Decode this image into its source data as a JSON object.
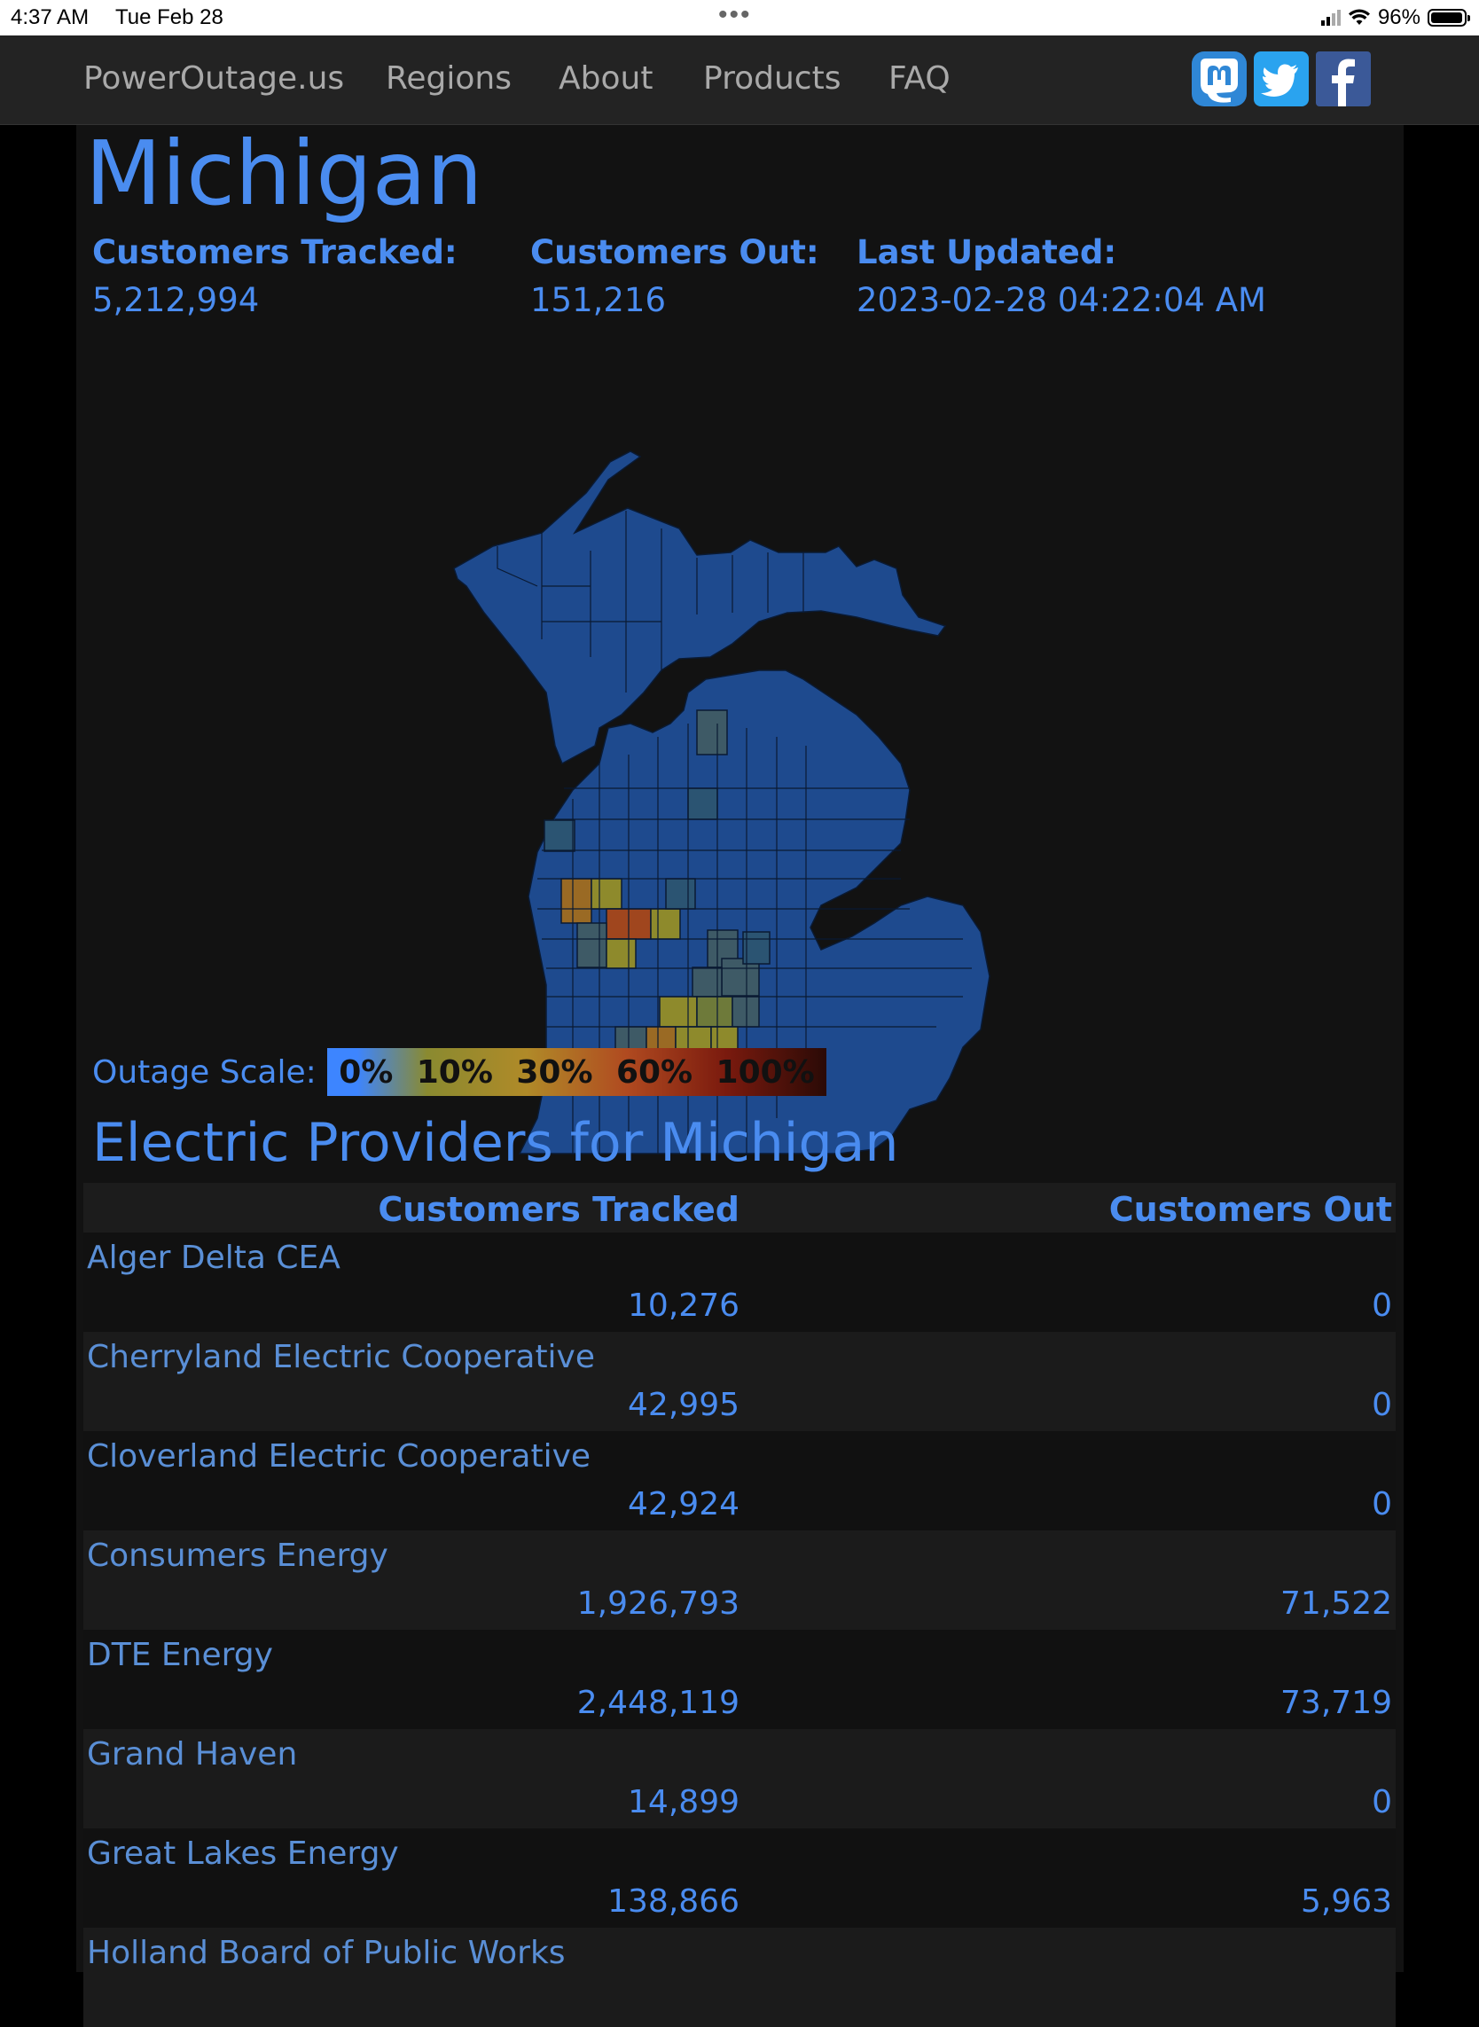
{
  "status_bar": {
    "time": "4:37 AM",
    "date": "Tue Feb 28",
    "battery": "96%",
    "battery_level": 0.96
  },
  "nav": {
    "items": [
      {
        "label": "PowerOutage.us"
      },
      {
        "label": "Regions"
      },
      {
        "label": "About"
      },
      {
        "label": "Products"
      },
      {
        "label": "FAQ"
      }
    ],
    "social": [
      {
        "name": "mastodon-icon",
        "color": "#3088d4"
      },
      {
        "name": "twitter-icon",
        "color": "#2aa3ef"
      },
      {
        "name": "facebook-icon",
        "color": "#3b5998"
      }
    ]
  },
  "region": {
    "title": "Michigan",
    "customers_tracked_label": "Customers Tracked:",
    "customers_tracked": "5,212,994",
    "customers_out_label": "Customers Out:",
    "customers_out": "151,216",
    "last_updated_label": "Last Updated:",
    "last_updated": "2023-02-28 04:22:04 AM"
  },
  "scale": {
    "label": "Outage Scale:",
    "stops": [
      "0%",
      "10%",
      "30%",
      "60%",
      "100%"
    ]
  },
  "colors": {
    "accent": "#4a8cf0",
    "county_base": "#1e4a8e",
    "outline": "#0a1a33"
  },
  "providers": {
    "title": "Electric Providers for Michigan",
    "col_tracked": "Customers Tracked",
    "col_out": "Customers Out",
    "rows": [
      {
        "name": "Alger Delta CEA",
        "tracked": "10,276",
        "out": "0"
      },
      {
        "name": "Cherryland Electric Cooperative",
        "tracked": "42,995",
        "out": "0"
      },
      {
        "name": "Cloverland Electric Cooperative",
        "tracked": "42,924",
        "out": "0"
      },
      {
        "name": "Consumers Energy",
        "tracked": "1,926,793",
        "out": "71,522"
      },
      {
        "name": "DTE Energy",
        "tracked": "2,448,119",
        "out": "73,719"
      },
      {
        "name": "Grand Haven",
        "tracked": "14,899",
        "out": "0"
      },
      {
        "name": "Great Lakes Energy",
        "tracked": "138,866",
        "out": "5,963"
      },
      {
        "name": "Holland Board of Public Works",
        "tracked": "",
        "out": ""
      }
    ]
  }
}
